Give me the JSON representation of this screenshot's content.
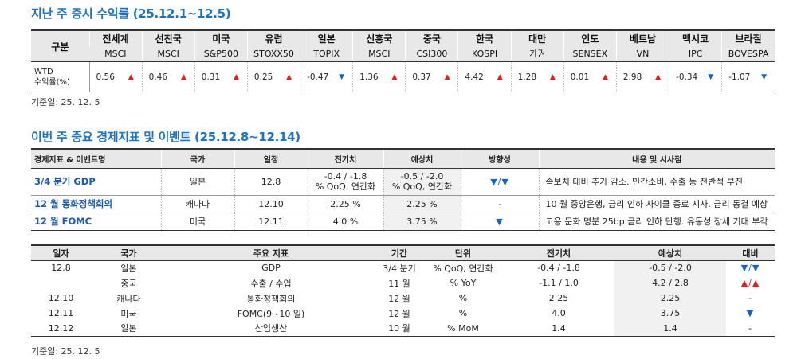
{
  "returns": {
    "title": "지난 주 증시 수익률 (25.12.1~12.5)",
    "header_label": "구분",
    "row_label_1": "WTD",
    "row_label_2": "수익률(%)",
    "markets": [
      {
        "name": "전세계",
        "index": "MSCI",
        "value": "0.56",
        "dir": "up"
      },
      {
        "name": "선진국",
        "index": "MSCI",
        "value": "0.46",
        "dir": "up"
      },
      {
        "name": "미국",
        "index": "S&P500",
        "value": "0.31",
        "dir": "up"
      },
      {
        "name": "유럽",
        "index": "STOXX50",
        "value": "0.25",
        "dir": "up"
      },
      {
        "name": "일본",
        "index": "TOPIX",
        "value": "-0.47",
        "dir": "down"
      },
      {
        "name": "신흥국",
        "index": "MSCI",
        "value": "1.36",
        "dir": "up"
      },
      {
        "name": "중국",
        "index": "CSI300",
        "value": "0.37",
        "dir": "up"
      },
      {
        "name": "한국",
        "index": "KOSPI",
        "value": "4.42",
        "dir": "up"
      },
      {
        "name": "대만",
        "index": "가권",
        "value": "1.28",
        "dir": "up"
      },
      {
        "name": "인도",
        "index": "SENSEX",
        "value": "0.01",
        "dir": "up"
      },
      {
        "name": "베트남",
        "index": "VN",
        "value": "2.98",
        "dir": "up"
      },
      {
        "name": "멕시코",
        "index": "IPC",
        "value": "-0.34",
        "dir": "down"
      },
      {
        "name": "브라질",
        "index": "BOVESPA",
        "value": "-1.07",
        "dir": "down"
      }
    ],
    "base_date": "기준일: 25. 12. 5"
  },
  "events": {
    "title": "이번 주 중요 경제지표 및 이벤트 (25.12.8~12.14)",
    "headers": [
      "경제지표 & 이벤트명",
      "국가",
      "일정",
      "전기치",
      "예상치",
      "방향성",
      "내용 및 시사점"
    ],
    "rows": [
      {
        "name": "3/4 분기 GDP",
        "country": "일본",
        "date": "12.8",
        "prev_1": "-0.4 / -1.8",
        "prev_2": "% QoQ, 연간화",
        "exp_1": "-0.5 / -2.0",
        "exp_2": "% QoQ, 연간화",
        "dir": "▼/▼",
        "content": "속보치 대비 추가 감소. 민간소비, 수출 등 전반적 부진"
      },
      {
        "name": "12 월 통화정책회의",
        "country": "캐나다",
        "date": "12.10",
        "prev": "2.25 %",
        "exp": "2.25 %",
        "dir": "-",
        "content": "10 월 중앙은행, 금리 인하 사이클 종료 시사. 금리 동결 예상"
      },
      {
        "name": "12 월 FOMC",
        "country": "미국",
        "date": "12.11",
        "prev": "4.0 %",
        "exp": "3.75 %",
        "dir": "▼",
        "content": "고용 둔화 명분 25bp 금리 인하 단행. 유동성 장세 기대 부각"
      }
    ]
  },
  "calendar": {
    "headers": [
      "일자",
      "국가",
      "주요 지표",
      "기간",
      "단위",
      "전기치",
      "예상치",
      "대비"
    ],
    "rows": [
      {
        "date": "12.8",
        "country": "일본",
        "indicator": "GDP",
        "period": "3/4 분기",
        "unit": "% QoQ, 연간화",
        "prev": "-0.4 / -1.8",
        "exp": "-0.5 / -2.0",
        "cmp": "▼/▼",
        "cmp_color": "#1565c0"
      },
      {
        "date": "",
        "country": "중국",
        "indicator": "수출 / 수입",
        "period": "11 월",
        "unit": "% YoY",
        "prev": "-1.1 / 1.0",
        "exp": "4.2 / 2.8",
        "cmp": "▲/▲",
        "cmp_color": "#e02020"
      },
      {
        "date": "12.10",
        "country": "캐나다",
        "indicator": "통화정책회의",
        "period": "12 월",
        "unit": "%",
        "prev": "2.25",
        "exp": "2.25",
        "cmp": "-",
        "cmp_color": "#222222"
      },
      {
        "date": "12.11",
        "country": "미국",
        "indicator": "FOMC(9~10 일)",
        "period": "12 월",
        "unit": "%",
        "prev": "4.0",
        "exp": "3.75",
        "cmp": "▼",
        "cmp_color": "#1565c0"
      },
      {
        "date": "12.12",
        "country": "일본",
        "indicator": "산업생산",
        "period": "10 월",
        "unit": "% MoM",
        "prev": "1.4",
        "exp": "1.4",
        "cmp": "-",
        "cmp_color": "#222222"
      }
    ],
    "base_date": "기준일: 25. 12. 5"
  },
  "colors": {
    "accent": "#1e73be",
    "up": "#e02020",
    "down": "#1565c0"
  }
}
